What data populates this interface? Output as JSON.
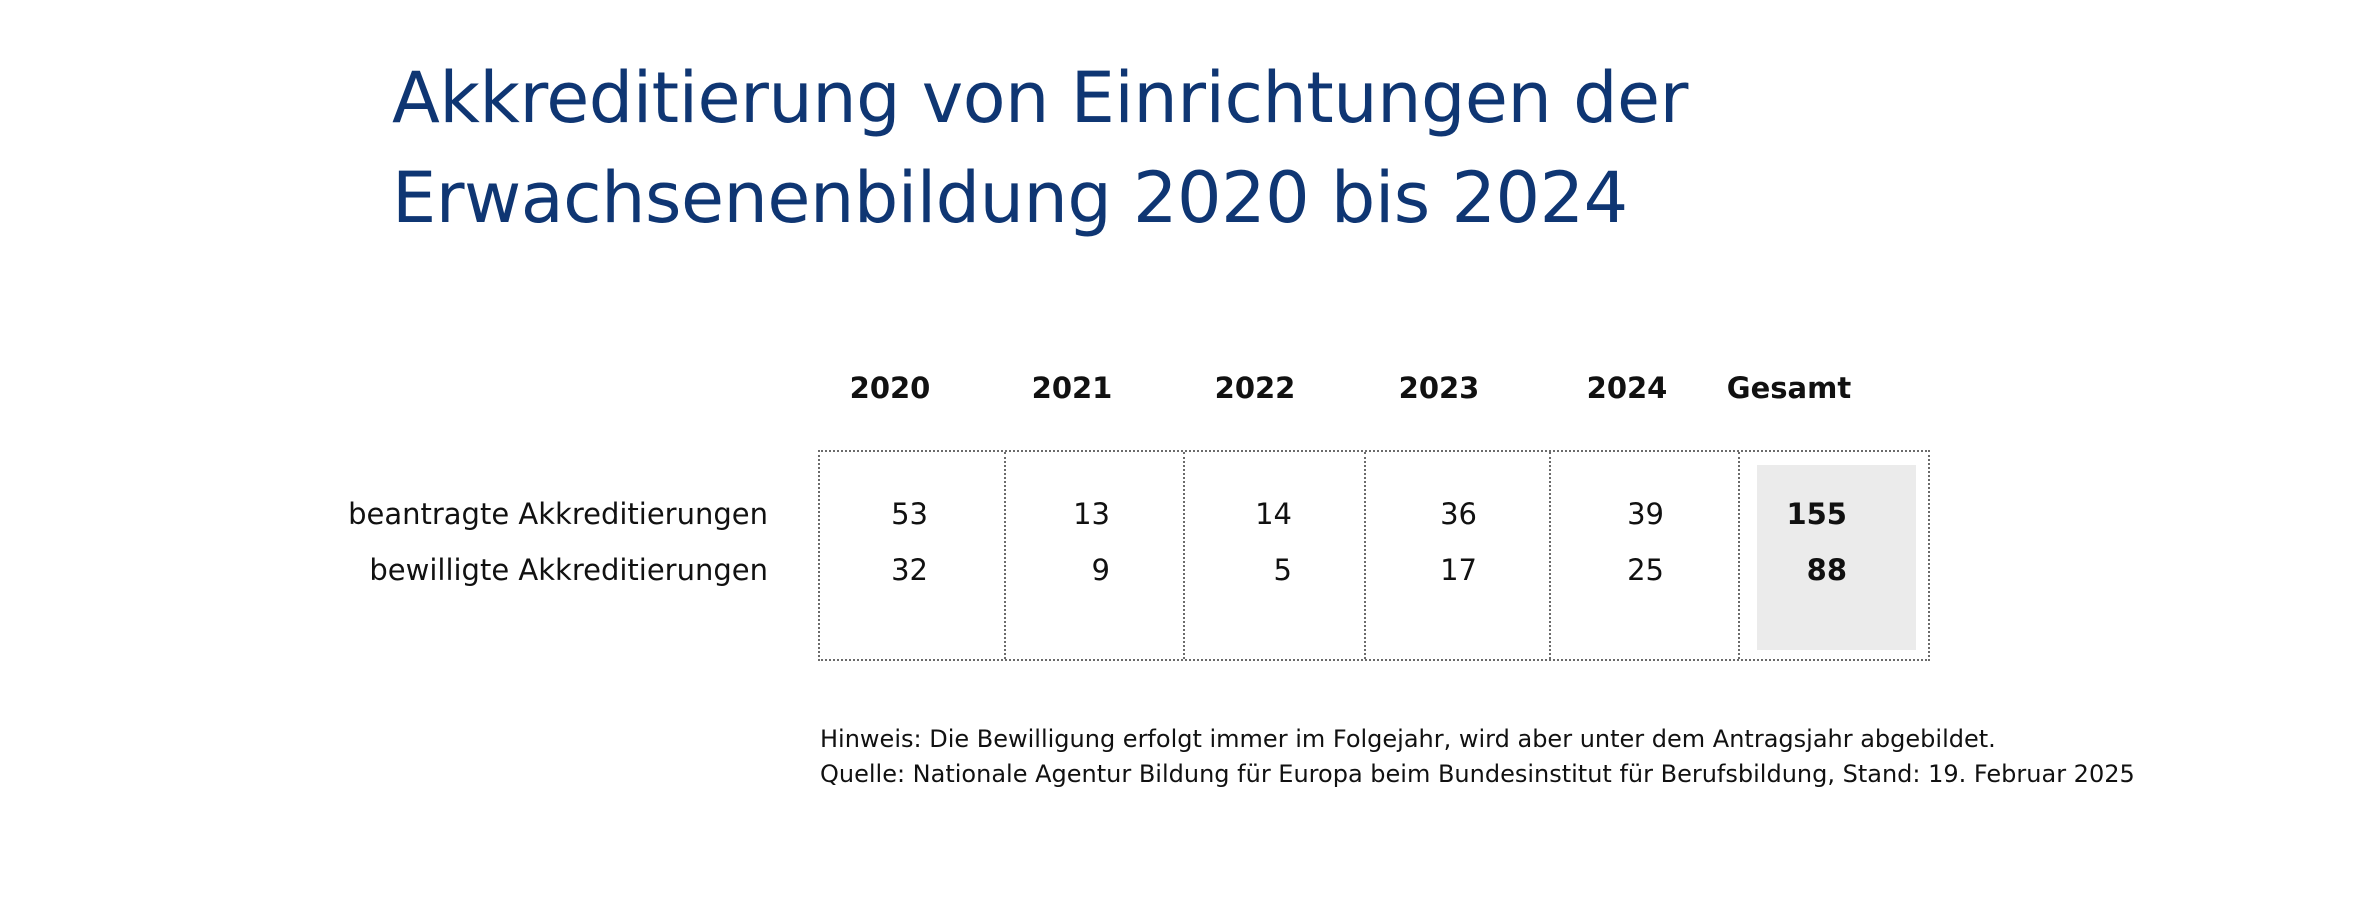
{
  "chart_data": {
    "type": "table",
    "title": "Akkreditierung von Einrichtungen der Erwachsenenbildung 2020 bis 2024",
    "title_lines": [
      "Akkreditierung von Einrichtungen der",
      "Erwachsenenbildung 2020 bis 2024"
    ],
    "columns": [
      "2020",
      "2021",
      "2022",
      "2023",
      "2024",
      "Gesamt"
    ],
    "rows": [
      {
        "label": "beantragte Akkreditierungen",
        "values": [
          "53",
          "13",
          "14",
          "36",
          "39",
          "155"
        ]
      },
      {
        "label": "bewilligte Akkreditierungen",
        "values": [
          "32",
          "9",
          "5",
          "17",
          "25",
          "88"
        ]
      }
    ],
    "notes": [
      "Hinweis: Die Bewilligung erfolgt immer im Folgejahr, wird aber unter dem Antragsjahr abgebildet.",
      "Quelle: Nationale Agentur Bildung für Europa beim Bundesinstitut für Berufsbildung, Stand: 19. Februar 2025"
    ]
  },
  "colors": {
    "title": "#0f3673",
    "total_highlight": "#ebebeb",
    "grid_lines": "#6b6b6b"
  }
}
